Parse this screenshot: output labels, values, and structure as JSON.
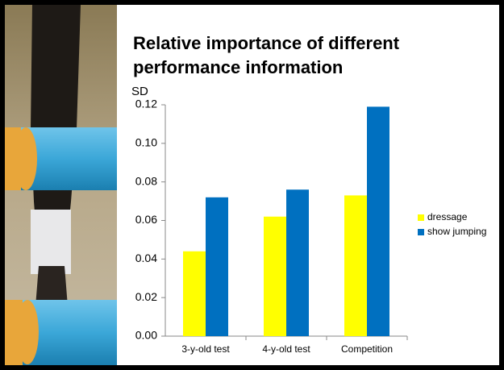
{
  "chart_data": {
    "type": "bar",
    "title": "Relative importance of different performance information",
    "ylabel": "SD",
    "categories": [
      "3-y-old test",
      "4-y-old test",
      "Competition"
    ],
    "series": [
      {
        "name": "dressage",
        "color": "#ffff00",
        "values": [
          0.044,
          0.062,
          0.073
        ]
      },
      {
        "name": "show jumping",
        "color": "#0070c0",
        "values": [
          0.072,
          0.076,
          0.119
        ]
      }
    ],
    "ylim": [
      0,
      0.12
    ],
    "yticks": [
      {
        "value": 0,
        "label": "0.00"
      },
      {
        "value": 0.02,
        "label": "0.02"
      },
      {
        "value": 0.04,
        "label": "0.04"
      },
      {
        "value": 0.06,
        "label": "0.06"
      },
      {
        "value": 0.08,
        "label": "0.08"
      },
      {
        "value": 0.1,
        "label": "0.10"
      },
      {
        "value": 0.12,
        "label": "0.12"
      }
    ],
    "grid": false,
    "legend": "right"
  }
}
